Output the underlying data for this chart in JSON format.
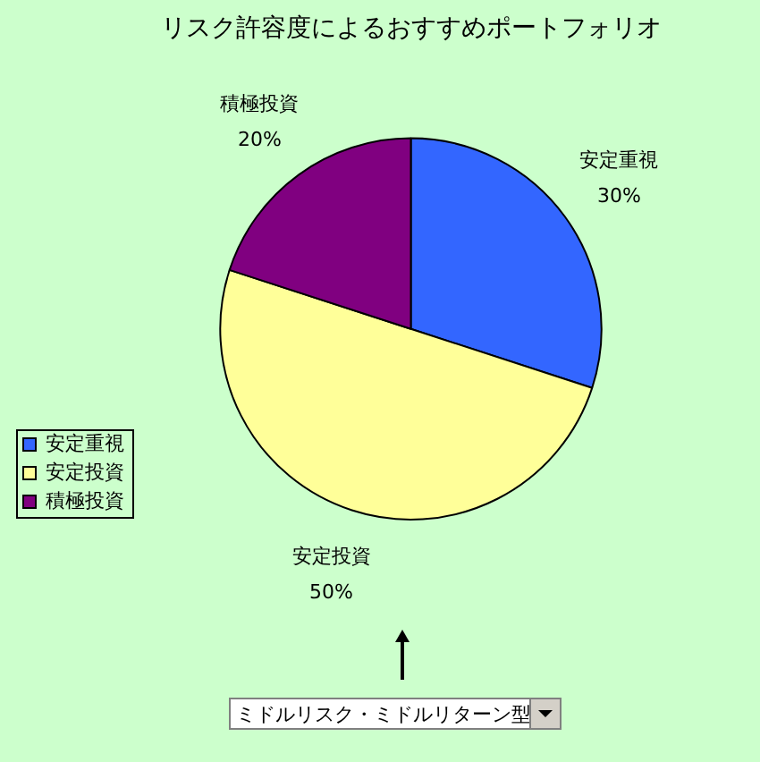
{
  "chart_data": {
    "type": "pie",
    "title": "リスク許容度によるおすすめポートフォリオ",
    "categories": [
      "安定重視",
      "安定投資",
      "積極投資"
    ],
    "values": [
      30,
      50,
      20
    ],
    "colors": [
      "#3366ff",
      "#ffff99",
      "#800080"
    ],
    "value_labels": [
      "30%",
      "50%",
      "20%"
    ],
    "legend": "bottom left",
    "annotations": [
      "ミドルリスク・ミドルリターン型"
    ]
  }
}
